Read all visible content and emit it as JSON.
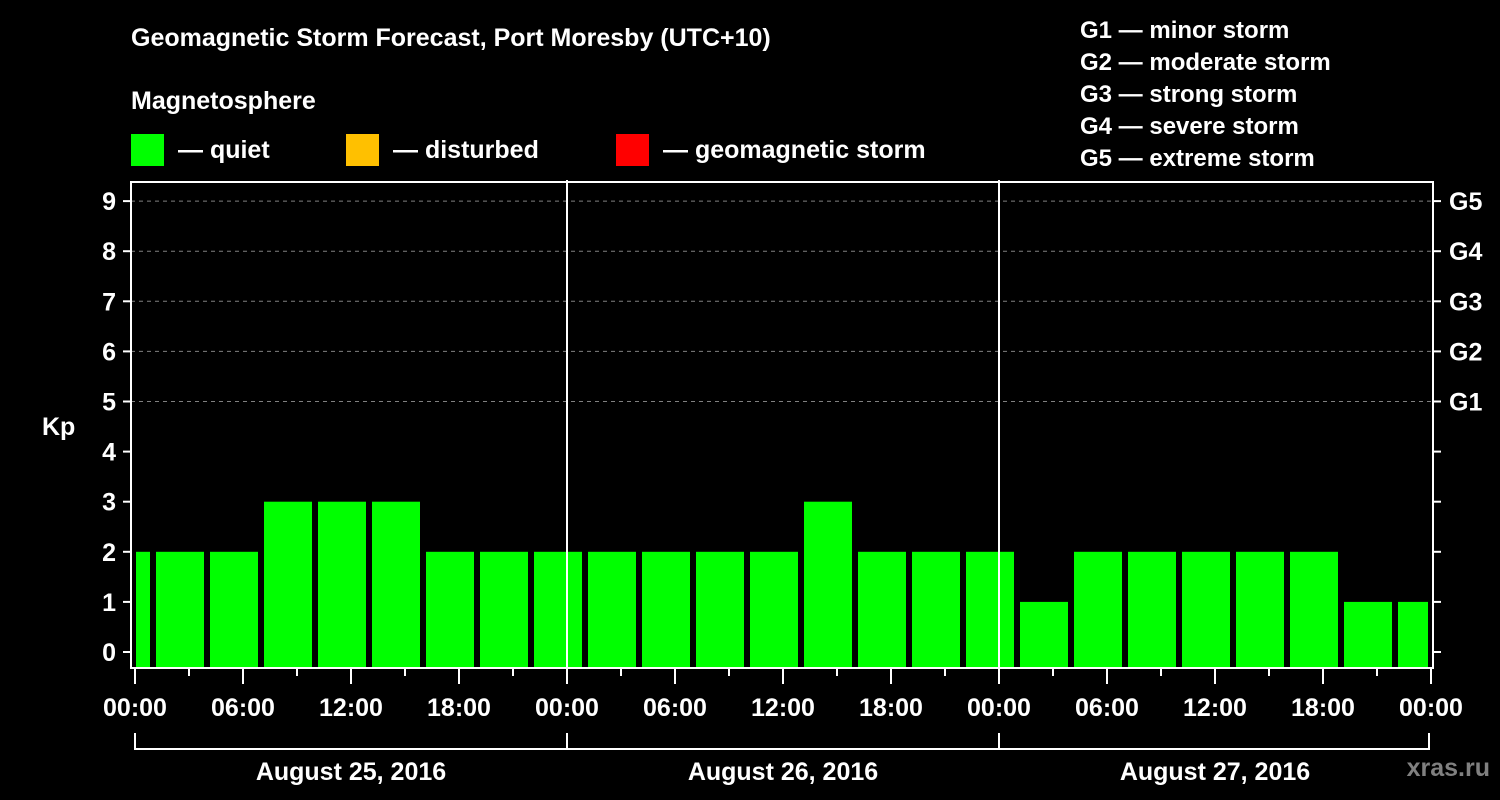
{
  "header": {
    "title": "Geomagnetic Storm Forecast, Port Moresby (UTC+10)",
    "subtitle": "Magnetosphere"
  },
  "legend": {
    "items": [
      {
        "label": "— quiet",
        "color": "#00ff00"
      },
      {
        "label": "— disturbed",
        "color": "#ffc000"
      },
      {
        "label": "— geomagnetic storm",
        "color": "#ff0000"
      }
    ]
  },
  "g_scale_legend": [
    "G1 — minor storm",
    "G2 — moderate storm",
    "G3 — strong storm",
    "G4 — severe storm",
    "G5 — extreme storm"
  ],
  "axis": {
    "ylabel": "Kp",
    "yticks": [
      "0",
      "1",
      "2",
      "3",
      "4",
      "5",
      "6",
      "7",
      "8",
      "9"
    ],
    "right_ticks": [
      {
        "kp": 5,
        "label": "G1"
      },
      {
        "kp": 6,
        "label": "G2"
      },
      {
        "kp": 7,
        "label": "G3"
      },
      {
        "kp": 8,
        "label": "G4"
      },
      {
        "kp": 9,
        "label": "G5"
      }
    ],
    "xticks": [
      "00:00",
      "06:00",
      "12:00",
      "18:00",
      "00:00",
      "06:00",
      "12:00",
      "18:00",
      "00:00",
      "06:00",
      "12:00",
      "18:00",
      "00:00"
    ],
    "dates": [
      "August 25, 2016",
      "August 26, 2016",
      "August 27, 2016"
    ]
  },
  "watermark": "xras.ru",
  "colors": {
    "background": "#000000",
    "quiet": "#00ff00",
    "disturbed": "#ffc000",
    "storm": "#ff0000",
    "axis": "#ffffff",
    "grid": "#808080"
  },
  "chart_data": {
    "type": "bar",
    "title": "Geomagnetic Storm Forecast, Port Moresby (UTC+10)",
    "xlabel": "",
    "ylabel": "Kp",
    "ylim": [
      0,
      9
    ],
    "grid": "dashed horizontal at Kp 5-9",
    "legend_position": "top",
    "categories": [
      "Aug 25 00:00 (partial)",
      "Aug 25 01:00",
      "Aug 25 04:00",
      "Aug 25 07:00",
      "Aug 25 10:00",
      "Aug 25 13:00",
      "Aug 25 16:00",
      "Aug 25 19:00",
      "Aug 25 22:00",
      "Aug 26 01:00",
      "Aug 26 04:00",
      "Aug 26 07:00",
      "Aug 26 10:00",
      "Aug 26 13:00",
      "Aug 26 16:00",
      "Aug 26 19:00",
      "Aug 26 22:00",
      "Aug 27 01:00",
      "Aug 27 04:00",
      "Aug 27 07:00",
      "Aug 27 10:00",
      "Aug 27 13:00",
      "Aug 27 16:00",
      "Aug 27 19:00",
      "Aug 27 22:00"
    ],
    "values": [
      2,
      2,
      2,
      3,
      3,
      3,
      2,
      2,
      2,
      2,
      2,
      2,
      2,
      3,
      2,
      2,
      2,
      1,
      2,
      2,
      2,
      2,
      2,
      1,
      1
    ],
    "status": [
      "quiet",
      "quiet",
      "quiet",
      "quiet",
      "quiet",
      "quiet",
      "quiet",
      "quiet",
      "quiet",
      "quiet",
      "quiet",
      "quiet",
      "quiet",
      "quiet",
      "quiet",
      "quiet",
      "quiet",
      "quiet",
      "quiet",
      "quiet",
      "quiet",
      "quiet",
      "quiet",
      "quiet",
      "quiet"
    ],
    "right_axis_labels": {
      "5": "G1",
      "6": "G2",
      "7": "G3",
      "8": "G4",
      "9": "G5"
    },
    "x_tick_labels": [
      "00:00",
      "06:00",
      "12:00",
      "18:00",
      "00:00",
      "06:00",
      "12:00",
      "18:00",
      "00:00",
      "06:00",
      "12:00",
      "18:00",
      "00:00"
    ],
    "date_labels": [
      "August 25, 2016",
      "August 26, 2016",
      "August 27, 2016"
    ]
  }
}
